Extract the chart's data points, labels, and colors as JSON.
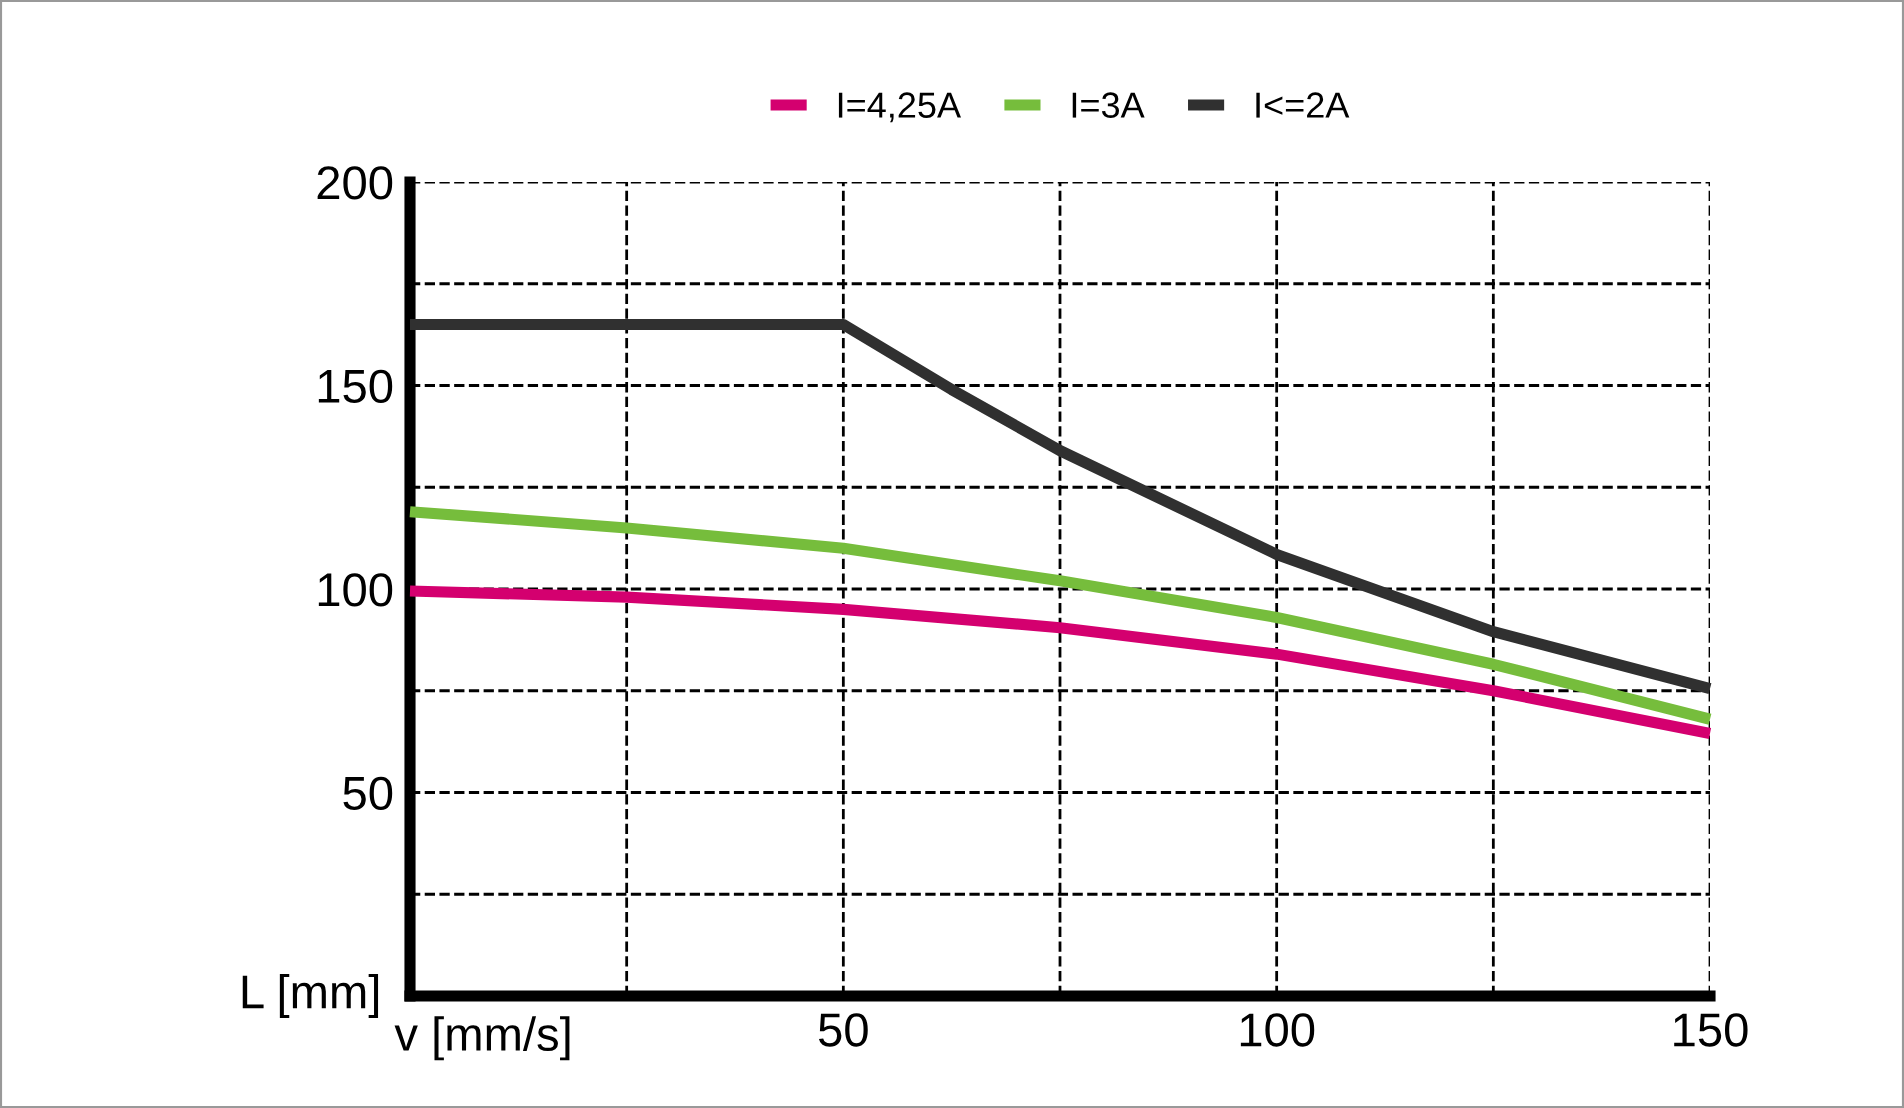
{
  "chart_data": {
    "type": "line",
    "xlabel": "v [mm/s]",
    "ylabel": "L [mm]",
    "xlim": [
      0,
      150
    ],
    "xticks": [
      {
        "value": 0,
        "label": null
      },
      {
        "value": 25,
        "label": null
      },
      50,
      {
        "value": 75,
        "label": null
      },
      100,
      {
        "value": 125,
        "label": null
      },
      150
    ],
    "ylim": [
      0,
      200
    ],
    "yticks": [
      {
        "value": 0,
        "label": null
      },
      {
        "value": 25,
        "label": null
      },
      50,
      {
        "value": 75,
        "label": null
      },
      100,
      {
        "value": 125,
        "label": null
      },
      150,
      {
        "value": 175,
        "label": null
      },
      200
    ],
    "grid": true,
    "legend": "top",
    "line_style": "solid",
    "marker": "none",
    "series": [
      {
        "name": "I=4,25A",
        "color": "#d4006f",
        "x": [
          0,
          25,
          50,
          75,
          100,
          125,
          150
        ],
        "values": [
          99.5,
          98,
          95,
          90.5,
          84,
          75,
          64.5
        ]
      },
      {
        "name": "I=3A",
        "color": "#76bd3c",
        "x": [
          0,
          25,
          50,
          75,
          100,
          125,
          150
        ],
        "values": [
          119,
          115,
          110,
          102,
          93,
          81.5,
          68
        ]
      },
      {
        "name": "I<=2A",
        "color": "#303030",
        "x": [
          0,
          50,
          62.5,
          75,
          100,
          125,
          150
        ],
        "values": [
          165,
          165,
          149,
          134,
          108.5,
          89.5,
          75.5
        ]
      }
    ]
  }
}
